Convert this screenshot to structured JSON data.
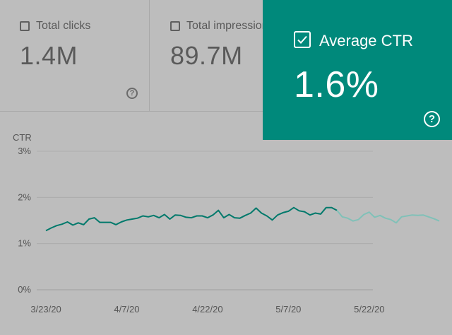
{
  "metrics": {
    "clicks": {
      "label": "Total clicks",
      "value": "1.4M",
      "checked": false
    },
    "impressions": {
      "label": "Total impressions",
      "value": "89.7M",
      "checked": false
    },
    "ctr": {
      "label": "Average CTR",
      "value": "1.6%",
      "checked": true,
      "color": "#00897b"
    }
  },
  "help_icon_glyph": "?",
  "chart_data": {
    "type": "line",
    "ylabel": "CTR",
    "ylim": [
      0,
      3
    ],
    "y_ticks": [
      "3%",
      "2%",
      "1%",
      "0%"
    ],
    "x_ticks": [
      "3/23/20",
      "4/7/20",
      "4/22/20",
      "5/7/20",
      "5/22/20"
    ],
    "grid": true,
    "series": [
      {
        "color": "#00796b",
        "faded_tail_color": "#80c1b8",
        "x_start": "3/23/20",
        "values": [
          1.28,
          1.34,
          1.39,
          1.42,
          1.47,
          1.4,
          1.45,
          1.41,
          1.53,
          1.56,
          1.46,
          1.46,
          1.46,
          1.41,
          1.47,
          1.51,
          1.53,
          1.55,
          1.6,
          1.58,
          1.61,
          1.56,
          1.63,
          1.53,
          1.62,
          1.61,
          1.57,
          1.56,
          1.6,
          1.6,
          1.56,
          1.62,
          1.72,
          1.56,
          1.63,
          1.56,
          1.55,
          1.61,
          1.66,
          1.77,
          1.66,
          1.6,
          1.51,
          1.62,
          1.67,
          1.7,
          1.78,
          1.71,
          1.69,
          1.62,
          1.66,
          1.64,
          1.78,
          1.78,
          1.72,
          1.58,
          1.55,
          1.49,
          1.52,
          1.63,
          1.68,
          1.57,
          1.61,
          1.55,
          1.52,
          1.45,
          1.58,
          1.6,
          1.62,
          1.61,
          1.62,
          1.58,
          1.54,
          1.49
        ]
      }
    ]
  }
}
